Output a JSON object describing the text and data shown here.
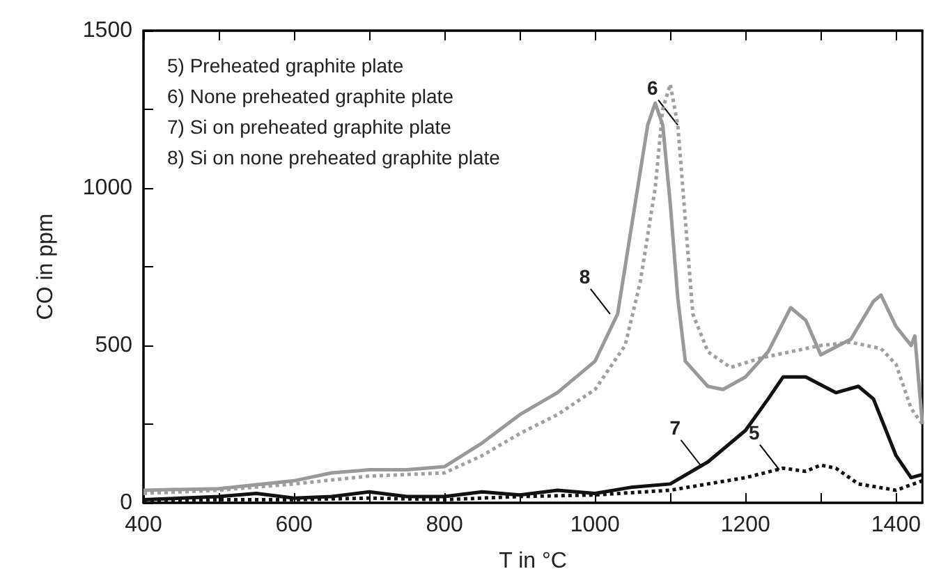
{
  "chart_data": {
    "type": "line",
    "xlabel": "T in °C",
    "ylabel": "CO in ppm",
    "xlim": [
      400,
      1435
    ],
    "xticks": [
      400,
      {
        "value": 500,
        "label": null
      },
      600,
      {
        "value": 700,
        "label": null
      },
      800,
      {
        "value": 900,
        "label": null
      },
      1000,
      {
        "value": 1100,
        "label": null
      },
      1200,
      {
        "value": 1300,
        "label": null
      },
      1400
    ],
    "ylim": [
      0,
      1500
    ],
    "yticks": [
      0,
      {
        "value": 250,
        "label": null
      },
      500,
      {
        "value": 750,
        "label": null
      },
      1000,
      {
        "value": 1250,
        "label": null
      },
      1500
    ],
    "grid": false,
    "marker": "none",
    "series": [
      {
        "color": "#111111",
        "line_style": "dotted",
        "x": [
          400,
          500,
          600,
          700,
          800,
          900,
          1000,
          1100,
          1150,
          1200,
          1250,
          1280,
          1300,
          1320,
          1350,
          1400,
          1435
        ],
        "values": [
          5,
          10,
          10,
          15,
          10,
          20,
          25,
          40,
          60,
          80,
          110,
          100,
          120,
          110,
          60,
          40,
          70
        ]
      },
      {
        "color": "#a0a0a0",
        "line_style": "dotted",
        "x": [
          400,
          500,
          600,
          700,
          800,
          850,
          900,
          950,
          1000,
          1040,
          1060,
          1080,
          1090,
          1100,
          1110,
          1120,
          1130,
          1150,
          1180,
          1220,
          1260,
          1300,
          1340,
          1380,
          1400,
          1420,
          1435
        ],
        "values": [
          30,
          40,
          60,
          85,
          95,
          150,
          220,
          280,
          360,
          500,
          700,
          1000,
          1250,
          1330,
          1200,
          900,
          600,
          480,
          430,
          460,
          480,
          500,
          510,
          490,
          440,
          300,
          250
        ]
      },
      {
        "color": "#111111",
        "line_style": "solid",
        "x": [
          400,
          500,
          550,
          600,
          650,
          700,
          750,
          800,
          850,
          900,
          950,
          1000,
          1050,
          1100,
          1150,
          1200,
          1230,
          1250,
          1280,
          1320,
          1350,
          1370,
          1400,
          1420,
          1435
        ],
        "values": [
          10,
          20,
          30,
          15,
          20,
          35,
          20,
          20,
          35,
          25,
          40,
          30,
          50,
          60,
          130,
          230,
          330,
          400,
          400,
          350,
          370,
          330,
          150,
          80,
          90
        ]
      },
      {
        "color": "#999999",
        "line_style": "solid",
        "x": [
          400,
          500,
          600,
          650,
          700,
          750,
          800,
          850,
          900,
          950,
          1000,
          1030,
          1050,
          1070,
          1080,
          1090,
          1100,
          1110,
          1120,
          1150,
          1170,
          1200,
          1230,
          1260,
          1280,
          1300,
          1340,
          1370,
          1380,
          1400,
          1420,
          1425,
          1435
        ],
        "values": [
          40,
          45,
          70,
          95,
          105,
          105,
          115,
          190,
          280,
          350,
          450,
          600,
          900,
          1200,
          1270,
          1200,
          950,
          650,
          450,
          370,
          360,
          400,
          480,
          620,
          580,
          470,
          520,
          640,
          660,
          560,
          500,
          530,
          250
        ]
      }
    ],
    "annotations": [
      "5) Preheated graphite plate",
      "6) None preheated graphite plate",
      "7) Si on preheated graphite plate",
      "8) Si on none preheated graphite plate",
      {
        "text": "8",
        "x": 1020,
        "y": 600
      },
      {
        "text": "6",
        "x": 1110,
        "y": 1200
      },
      {
        "text": "7",
        "x": 1140,
        "y": 120
      },
      {
        "text": "5",
        "x": 1245,
        "y": 105
      }
    ]
  }
}
